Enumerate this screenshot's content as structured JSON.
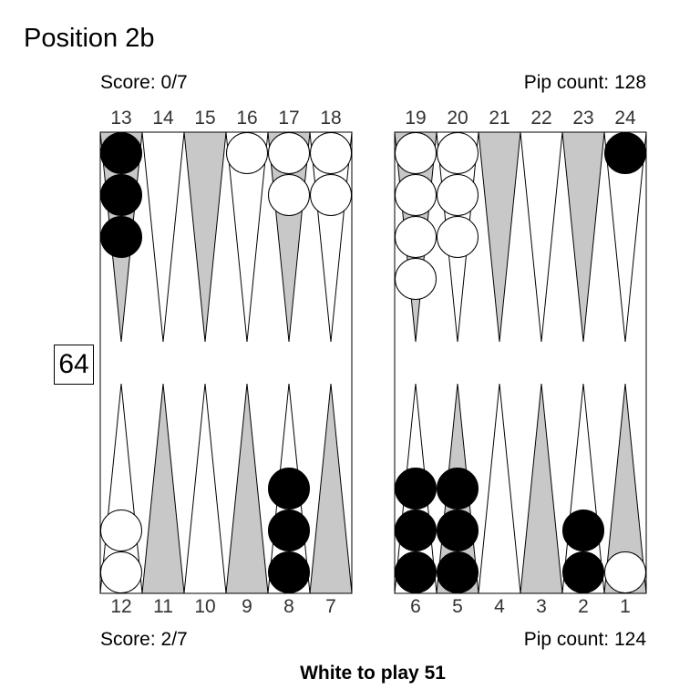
{
  "title": "Position 2b",
  "top_score": "Score: 0/7",
  "top_pip": "Pip count: 128",
  "bottom_score": "Score: 2/7",
  "bottom_pip": "Pip count: 124",
  "footer": "White to play 51",
  "cube_value": "64",
  "top_labels": [
    "13",
    "14",
    "15",
    "16",
    "17",
    "18",
    "19",
    "20",
    "21",
    "22",
    "23",
    "24"
  ],
  "bottom_labels": [
    "12",
    "11",
    "10",
    "9",
    "8",
    "7",
    "6",
    "5",
    "4",
    "3",
    "2",
    "1"
  ],
  "colors": {
    "light_point": "#ffffff",
    "dark_point": "#c8c8c8",
    "white_checker": "#ffffff",
    "black_checker": "#000000",
    "outline": "#000000"
  },
  "position": {
    "1": {
      "color": "white",
      "count": 1
    },
    "2": {
      "color": "black",
      "count": 2
    },
    "5": {
      "color": "black",
      "count": 3
    },
    "6": {
      "color": "black",
      "count": 3
    },
    "8": {
      "color": "black",
      "count": 3
    },
    "12": {
      "color": "white",
      "count": 2
    },
    "13": {
      "color": "black",
      "count": 3
    },
    "16": {
      "color": "white",
      "count": 1
    },
    "17": {
      "color": "white",
      "count": 2
    },
    "18": {
      "color": "white",
      "count": 2
    },
    "19": {
      "color": "white",
      "count": 4
    },
    "20": {
      "color": "white",
      "count": 3
    },
    "24": {
      "color": "black",
      "count": 1
    }
  }
}
